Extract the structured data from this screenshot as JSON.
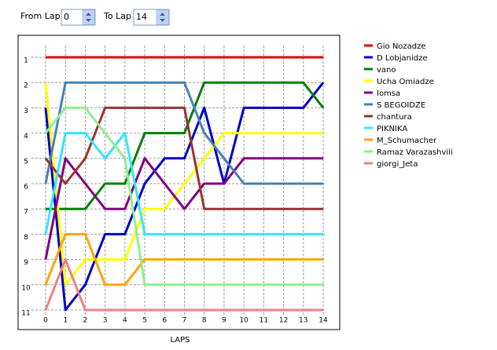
{
  "controls": {
    "from_label": "From Lap",
    "from_value": 0,
    "to_label": "To Lap",
    "to_value": 14
  },
  "chart_data": {
    "type": "line",
    "x_label": "LAPS",
    "x": [
      0,
      1,
      2,
      3,
      4,
      5,
      6,
      7,
      8,
      9,
      10,
      11,
      12,
      13,
      14
    ],
    "xlim": [
      0,
      14
    ],
    "xticks": [
      0,
      1,
      2,
      3,
      4,
      5,
      6,
      7,
      8,
      9,
      10,
      11,
      12,
      13,
      14
    ],
    "ylim": [
      1,
      11
    ],
    "yticks": [
      1,
      2,
      3,
      4,
      5,
      6,
      7,
      8,
      9,
      10,
      11
    ],
    "y_reversed": true,
    "grid": true,
    "legend": "right",
    "series": [
      {
        "name": "Gio Nozadze",
        "color": "#e00000",
        "values": [
          1,
          1,
          1,
          1,
          1,
          1,
          1,
          1,
          1,
          1,
          1,
          1,
          1,
          1,
          1
        ]
      },
      {
        "name": "D Lobjanidze",
        "color": "#0000c8",
        "values": [
          3,
          11,
          10,
          8,
          8,
          6,
          5,
          5,
          3,
          6,
          3,
          3,
          3,
          3,
          2
        ]
      },
      {
        "name": "vano",
        "color": "#008000",
        "values": [
          7,
          7,
          7,
          6,
          6,
          4,
          4,
          4,
          2,
          2,
          2,
          2,
          2,
          2,
          3
        ]
      },
      {
        "name": "Ucha Omiadze",
        "color": "#ffff00",
        "values": [
          2,
          10,
          9,
          9,
          9,
          7,
          7,
          6,
          5,
          4,
          4,
          4,
          4,
          4,
          4
        ]
      },
      {
        "name": "Iomsa",
        "color": "#800080",
        "values": [
          9,
          5,
          6,
          7,
          7,
          5,
          6,
          7,
          6,
          6,
          5,
          5,
          5,
          5,
          5
        ]
      },
      {
        "name": "S BEGOIDZE",
        "color": "#4682b4",
        "values": [
          6,
          2,
          2,
          2,
          2,
          2,
          2,
          2,
          4,
          5,
          6,
          6,
          6,
          6,
          6
        ]
      },
      {
        "name": "chantura",
        "color": "#993333",
        "values": [
          5,
          6,
          5,
          3,
          3,
          3,
          3,
          3,
          7,
          7,
          7,
          7,
          7,
          7,
          7
        ]
      },
      {
        "name": "PIKNIKA",
        "color": "#33e6ff",
        "values": [
          8,
          4,
          4,
          5,
          4,
          8,
          8,
          8,
          8,
          8,
          8,
          8,
          8,
          8,
          8
        ]
      },
      {
        "name": "M_Schumacher",
        "color": "#ffa500",
        "values": [
          10,
          8,
          8,
          10,
          10,
          9,
          9,
          9,
          9,
          9,
          9,
          9,
          9,
          9,
          9
        ]
      },
      {
        "name": "Ramaz Varazashvili",
        "color": "#90ee90",
        "values": [
          4,
          3,
          3,
          4,
          5,
          10,
          10,
          10,
          10,
          10,
          10,
          10,
          10,
          10,
          10
        ]
      },
      {
        "name": "giorgi_Jeta",
        "color": "#f08080",
        "values": [
          11,
          9,
          11,
          11,
          11,
          11,
          11,
          11,
          11,
          11,
          11,
          11,
          11,
          11,
          11
        ]
      }
    ]
  }
}
